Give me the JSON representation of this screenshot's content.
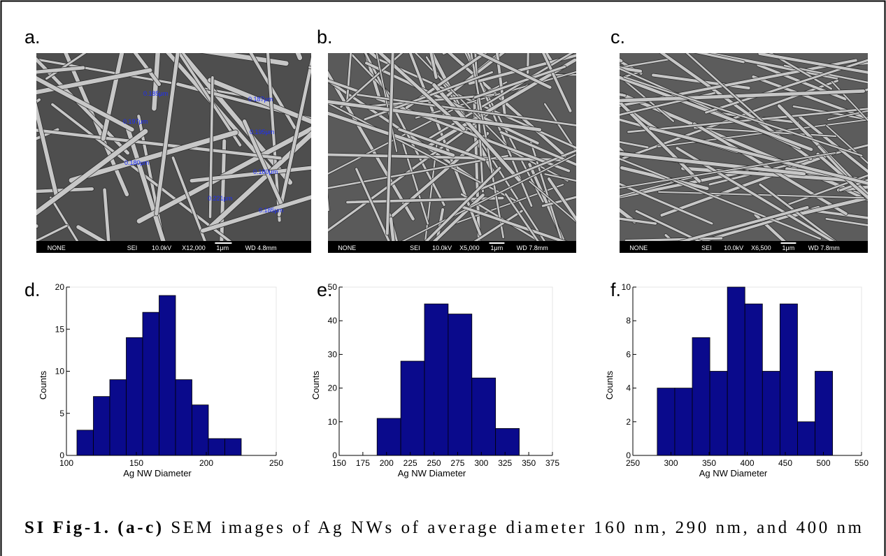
{
  "panels": {
    "top": [
      "a.",
      "b.",
      "c."
    ],
    "bottom": [
      "d.",
      "e.",
      "f."
    ]
  },
  "images": [
    {
      "info_bar": [
        "NONE",
        "SEI",
        "10.0kV",
        "X12,000",
        "1μm",
        "WD 4.8mm"
      ],
      "measurements": [
        "0.185μm",
        "0.187μm",
        "0.197μm",
        "0.195μm",
        "0.180μm",
        "0.180μm",
        "0.221μm",
        "0.185μm"
      ]
    },
    {
      "info_bar": [
        "NONE",
        "SEI",
        "10.0kV",
        "X5,000",
        "1μm",
        "WD 7.8mm"
      ]
    },
    {
      "info_bar": [
        "NONE",
        "SEI",
        "10.0kV",
        "X6,500",
        "1μm",
        "WD 7.8mm"
      ]
    }
  ],
  "chart_data": [
    {
      "type": "histogram",
      "x_label": "Ag NW Diameter",
      "y_label": "Counts",
      "color": "#0a0a8c",
      "bins": [
        107.5,
        119.25,
        131,
        142.75,
        154.5,
        166.25,
        178,
        189.75,
        201.5,
        213.25,
        225
      ],
      "values": [
        3,
        7,
        9,
        14,
        17,
        19,
        9,
        6,
        2,
        2
      ],
      "xlim": [
        100,
        250
      ],
      "xticks": [
        100,
        150,
        200,
        250
      ],
      "ylim": [
        0,
        20
      ],
      "yticks": [
        0,
        5,
        10,
        15,
        20
      ]
    },
    {
      "type": "histogram",
      "x_label": "Ag NW Diameter",
      "y_label": "Counts",
      "color": "#0a0a8c",
      "bins": [
        190,
        215,
        240,
        265,
        290,
        315,
        340
      ],
      "values": [
        11,
        28,
        45,
        42,
        23,
        8
      ],
      "xlim": [
        150,
        375
      ],
      "xticks": [
        150,
        175,
        200,
        225,
        250,
        275,
        300,
        325,
        350,
        375
      ],
      "ylim": [
        0,
        50
      ],
      "yticks": [
        0,
        10,
        20,
        30,
        40,
        50
      ]
    },
    {
      "type": "histogram",
      "x_label": "Ag NW Diameter",
      "y_label": "Counts",
      "color": "#0a0a8c",
      "bins": [
        282,
        305,
        328,
        351,
        374,
        397,
        420,
        443,
        466,
        489,
        512
      ],
      "values": [
        4,
        4,
        7,
        5,
        10,
        9,
        5,
        9,
        2,
        5
      ],
      "xlim": [
        250,
        550
      ],
      "xticks": [
        250,
        300,
        350,
        400,
        450,
        500,
        550
      ],
      "ylim": [
        0,
        10
      ],
      "yticks": [
        0,
        2,
        4,
        6,
        8,
        10
      ]
    }
  ],
  "caption": {
    "bold": "SI Fig-1. (a-c)",
    "text": "SEM images of Ag NWs of average diameter 160 nm, 290 nm, and 400 nm"
  }
}
